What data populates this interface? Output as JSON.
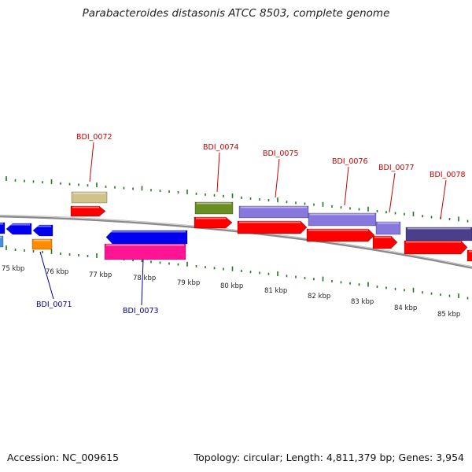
{
  "title": "Parabacteroides distasonis ATCC 8503, complete genome",
  "footer": {
    "accession": "Accession: NC_009615",
    "summary": "Topology: circular; Length: 4,811,379 bp; Genes: 3,954"
  },
  "colors": {
    "backbone": "#8a8a8a",
    "tick": "#1f7a1f",
    "label_top": "#cc0000",
    "label_bottom": "#000099",
    "cds": "#ff0000",
    "gene_blue": "#0000ee",
    "gene_orange": "#ff8c00",
    "gene_tan": "#cfc38b",
    "gene_olive": "#6b8e23",
    "gene_purple": "#8877dd",
    "gene_darkpurple": "#4b3f8c",
    "gene_pink": "#ff1493",
    "gene_lightblue": "#4a90d9"
  },
  "axis": {
    "unit": "kbp",
    "tick_labels": [
      "75 kbp",
      "76 kbp",
      "77 kbp",
      "78 kbp",
      "79 kbp",
      "80 kbp",
      "81 kbp",
      "82 kbp",
      "83 kbp",
      "84 kbp",
      "85 kbp"
    ]
  },
  "gene_labels_top": [
    "BDI_0072",
    "BDI_0074",
    "BDI_0075",
    "BDI_0076",
    "BDI_0077",
    "BDI_0078"
  ],
  "gene_labels_bottom": [
    "BDI_0071",
    "BDI_0073"
  ]
}
